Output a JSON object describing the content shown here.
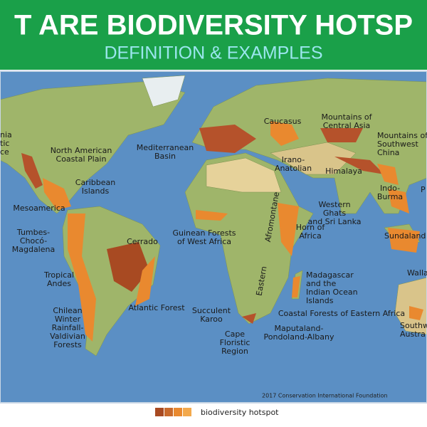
{
  "header": {
    "title": "T ARE BIODIVERSITY HOTSP",
    "subtitle": "DEFINITION & EXAMPLES"
  },
  "map": {
    "labels": [
      {
        "lines": [
          "nia",
          "tic",
          "ce"
        ]
      },
      {
        "lines": [
          "North American",
          "Coastal Plain"
        ]
      },
      {
        "lines": [
          "Mediterranean",
          "Basin"
        ]
      },
      {
        "lines": [
          "Caucasus"
        ]
      },
      {
        "lines": [
          "Mountains of",
          "Central Asia"
        ]
      },
      {
        "lines": [
          "Mountains of",
          "Southwest",
          "China"
        ]
      },
      {
        "lines": [
          "Caribbean",
          "Islands"
        ]
      },
      {
        "lines": [
          "Irano-",
          "Anatolian"
        ]
      },
      {
        "lines": [
          "Himalaya"
        ]
      },
      {
        "lines": [
          "Indo-",
          "Burma"
        ]
      },
      {
        "lines": [
          "P"
        ]
      },
      {
        "lines": [
          "Mesoamerica"
        ]
      },
      {
        "lines": [
          "Western",
          "Ghats",
          "and Sri Lanka"
        ]
      },
      {
        "lines": [
          "Horn of",
          "Africa"
        ]
      },
      {
        "lines": [
          "Sundaland"
        ]
      },
      {
        "lines": [
          "Tumbes-",
          "Chocó-",
          "Magdalena"
        ]
      },
      {
        "lines": [
          "Guinean Forests",
          "of West Africa"
        ]
      },
      {
        "lines": [
          "Cerrado"
        ]
      },
      {
        "lines": [
          "Afromontane"
        ]
      },
      {
        "lines": [
          "Eastern"
        ]
      },
      {
        "lines": [
          "Tropical",
          "Andes"
        ]
      },
      {
        "lines": [
          "Madagascar",
          "and the",
          "Indian Ocean",
          "Islands"
        ]
      },
      {
        "lines": [
          "Walla"
        ]
      },
      {
        "lines": [
          "Atlantic Forest"
        ]
      },
      {
        "lines": [
          "Coastal Forests of Eastern Africa"
        ]
      },
      {
        "lines": [
          "Chilean",
          "Winter",
          "Rainfall-",
          "Valdivian",
          "Forests"
        ]
      },
      {
        "lines": [
          "Succulent",
          "Karoo"
        ]
      },
      {
        "lines": [
          "Southw",
          "Austra"
        ]
      },
      {
        "lines": [
          "Maputaland-",
          "Pondoland-Albany"
        ]
      },
      {
        "lines": [
          "Cape",
          "Floristic",
          "Region"
        ]
      }
    ],
    "credit": "2017 Conservation International Foundation"
  },
  "legend": {
    "label": "biodiversity hotspot"
  }
}
